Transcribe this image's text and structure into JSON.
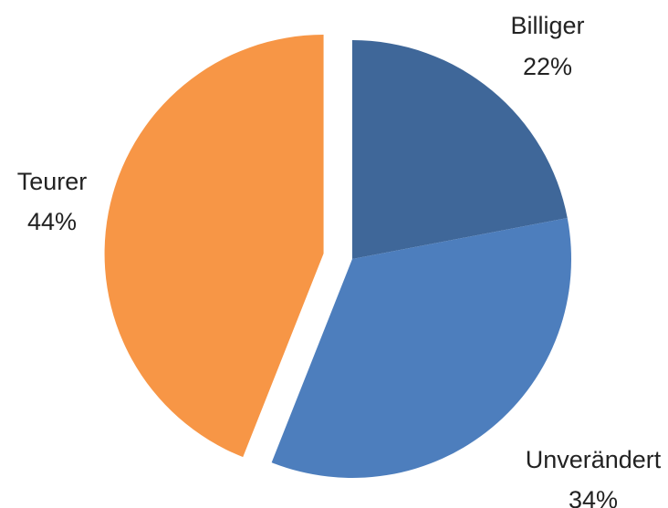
{
  "chart_data": {
    "type": "pie",
    "title": "",
    "slices": [
      {
        "label": "Billiger",
        "value": 22,
        "value_label": "22%",
        "color": "#3f6799"
      },
      {
        "label": "Unverändert",
        "value": 34,
        "value_label": "34%",
        "color": "#4d7ebd"
      },
      {
        "label": "Teurer",
        "value": 44,
        "value_label": "44%",
        "color": "#f79646",
        "exploded": true
      }
    ],
    "start_angle": "12 o'clock",
    "direction": "clockwise",
    "legend": "none"
  }
}
